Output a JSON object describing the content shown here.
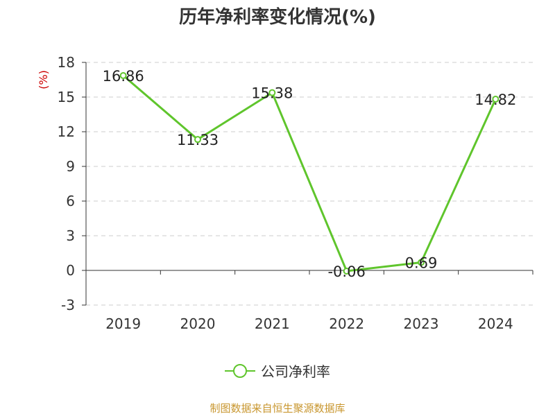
{
  "chart_data": {
    "type": "line",
    "title": "历年净利率变化情况(%)",
    "ylabel": "(%)",
    "categories": [
      "2019",
      "2020",
      "2021",
      "2022",
      "2023",
      "2024"
    ],
    "series": [
      {
        "name": "公司净利率",
        "values": [
          16.86,
          11.33,
          15.38,
          -0.06,
          0.69,
          14.82
        ],
        "labels": [
          "16.86",
          "11.33",
          "15.38",
          "-0.06",
          "0.69",
          "14.82"
        ]
      }
    ],
    "ylim": [
      -3,
      18
    ],
    "yticks": [
      -3,
      0,
      3,
      6,
      9,
      12,
      15,
      18
    ],
    "grid": true,
    "legend_position": "bottom-center"
  },
  "source_note": "制图数据来自恒生聚源数据库",
  "colors": {
    "line": "#5fc52c",
    "title": "#333333",
    "ylabel": "#cc0000",
    "grid": "#cccccc",
    "source": "#c8962e"
  }
}
